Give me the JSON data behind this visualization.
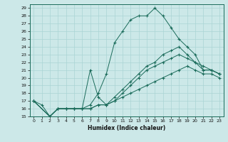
{
  "xlabel": "Humidex (Indice chaleur)",
  "background_color": "#cce8e8",
  "line_color": "#1a6b5a",
  "grid_color": "#aad4d4",
  "xlim": [
    -0.5,
    23.5
  ],
  "ylim": [
    15,
    29.5
  ],
  "yticks": [
    15,
    16,
    17,
    18,
    19,
    20,
    21,
    22,
    23,
    24,
    25,
    26,
    27,
    28,
    29
  ],
  "xticks": [
    0,
    1,
    2,
    3,
    4,
    5,
    6,
    7,
    8,
    9,
    10,
    11,
    12,
    13,
    14,
    15,
    16,
    17,
    18,
    19,
    20,
    21,
    22,
    23
  ],
  "lines": [
    {
      "x": [
        0,
        1,
        2,
        3,
        4,
        5,
        6,
        7,
        8,
        9,
        10,
        11,
        12,
        13,
        14,
        15,
        16,
        17,
        18,
        19,
        20,
        21,
        22,
        23
      ],
      "y": [
        17,
        16.5,
        15,
        16,
        16,
        16,
        16,
        16.5,
        18,
        20.5,
        24.5,
        26,
        27.5,
        28,
        28,
        29,
        28,
        26.5,
        25,
        24,
        23,
        21,
        21,
        20.5
      ]
    },
    {
      "x": [
        0,
        2,
        3,
        4,
        5,
        6,
        7,
        8,
        9,
        10,
        11,
        12,
        13,
        14,
        15,
        16,
        17,
        18,
        19,
        20,
        21,
        22,
        23
      ],
      "y": [
        17,
        15,
        16,
        16,
        16,
        16,
        21,
        17.5,
        16.5,
        17.5,
        18.5,
        19.5,
        20.5,
        21.5,
        22,
        23,
        23.5,
        24,
        23,
        22,
        21.5,
        21,
        20.5
      ]
    },
    {
      "x": [
        0,
        2,
        3,
        4,
        5,
        6,
        7,
        8,
        9,
        10,
        11,
        12,
        13,
        14,
        15,
        16,
        17,
        18,
        19,
        20,
        21,
        22,
        23
      ],
      "y": [
        17,
        15,
        16,
        16,
        16,
        16,
        16,
        16.5,
        16.5,
        17,
        18,
        19,
        20,
        21,
        21.5,
        22,
        22.5,
        23,
        22.5,
        22,
        21,
        21,
        20.5
      ]
    },
    {
      "x": [
        0,
        2,
        3,
        4,
        5,
        6,
        7,
        8,
        9,
        10,
        11,
        12,
        13,
        14,
        15,
        16,
        17,
        18,
        19,
        20,
        21,
        22,
        23
      ],
      "y": [
        17,
        15,
        16,
        16,
        16,
        16,
        16,
        16.5,
        16.5,
        17,
        17.5,
        18,
        18.5,
        19,
        19.5,
        20,
        20.5,
        21,
        21.5,
        21,
        20.5,
        20.5,
        20
      ]
    }
  ]
}
